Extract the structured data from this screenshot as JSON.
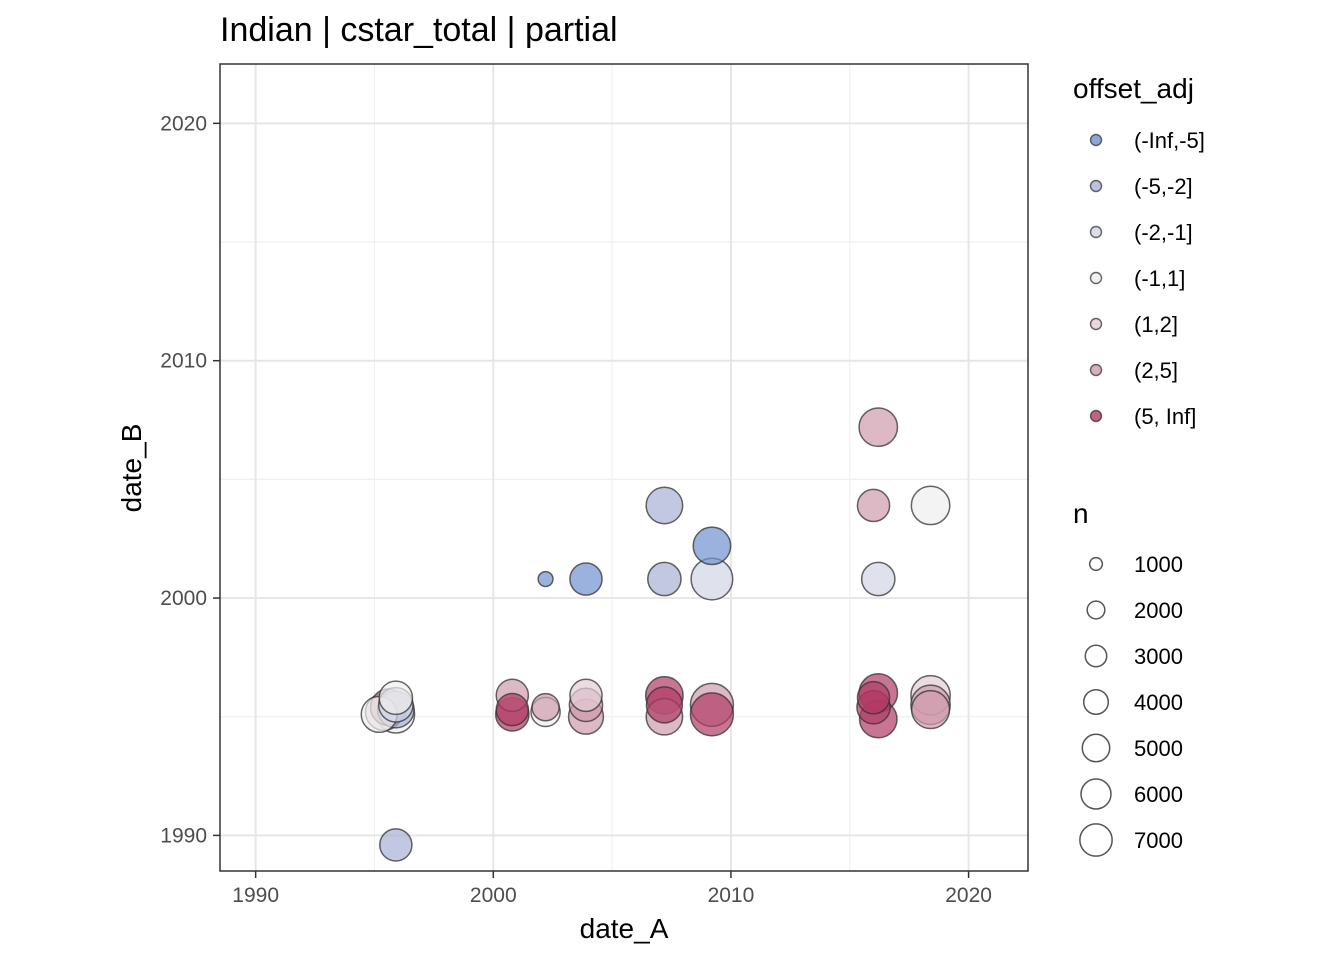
{
  "chart_data": {
    "type": "scatter",
    "title": "Indian | cstar_total | partial",
    "xlabel": "date_A",
    "ylabel": "date_B",
    "xlim": [
      1988.5,
      2022.5
    ],
    "ylim": [
      1988.5,
      2022.5
    ],
    "x_ticks": [
      "1990",
      "2000",
      "2010",
      "2020"
    ],
    "y_ticks": [
      "1990",
      "2000",
      "2010",
      "2020"
    ],
    "grid": true,
    "legend_placement": "right",
    "color_legend": {
      "title": "offset_adj",
      "entries": [
        {
          "label": "(-Inf,-5]",
          "color": "#7190d0"
        },
        {
          "label": "(-5,-2]",
          "color": "#aab1d6"
        },
        {
          "label": "(-2,-1]",
          "color": "#d2d5e6"
        },
        {
          "label": "(-1,1]",
          "color": "#eeeeee"
        },
        {
          "label": "(1,2]",
          "color": "#e3cdd5"
        },
        {
          "label": "(2,5]",
          "color": "#cf9aac"
        },
        {
          "label": "(5, Inf]",
          "color": "#b13b65"
        }
      ]
    },
    "size_legend": {
      "title": "n",
      "entries": [
        {
          "label": "1000",
          "value": 1000
        },
        {
          "label": "2000",
          "value": 2000
        },
        {
          "label": "3000",
          "value": 3000
        },
        {
          "label": "4000",
          "value": 4000
        },
        {
          "label": "5000",
          "value": 5000
        },
        {
          "label": "6000",
          "value": 6000
        },
        {
          "label": "7000",
          "value": 7000
        }
      ]
    },
    "points": [
      {
        "x": 1995.2,
        "y": 1995.1,
        "group": "(-1,1]",
        "n": 3500
      },
      {
        "x": 1995.4,
        "y": 1995.2,
        "group": "(1,2]",
        "n": 3700
      },
      {
        "x": 1995.6,
        "y": 1995.4,
        "group": "(2,5]",
        "n": 3600
      },
      {
        "x": 1995.9,
        "y": 1995.8,
        "group": "(-1,1]",
        "n": 3000
      },
      {
        "x": 1995.9,
        "y": 1995.5,
        "group": "(-2,-1]",
        "n": 3200
      },
      {
        "x": 1995.9,
        "y": 1995.3,
        "group": "(-5,-2]",
        "n": 3600
      },
      {
        "x": 1995.9,
        "y": 1995.1,
        "group": "(-1,1]",
        "n": 3800
      },
      {
        "x": 1995.9,
        "y": 1989.6,
        "group": "(-5,-2]",
        "n": 2800
      },
      {
        "x": 2000.8,
        "y": 1995.9,
        "group": "(2,5]",
        "n": 2800
      },
      {
        "x": 2000.8,
        "y": 1995.3,
        "group": "(5, Inf]",
        "n": 2800
      },
      {
        "x": 2000.8,
        "y": 1995.1,
        "group": "(5, Inf]",
        "n": 3000
      },
      {
        "x": 2002.2,
        "y": 1995.4,
        "group": "(2,5]",
        "n": 2000
      },
      {
        "x": 2002.2,
        "y": 1995.2,
        "group": "(-1,1]",
        "n": 2300
      },
      {
        "x": 2002.2,
        "y": 2000.8,
        "group": "(-Inf,-5]",
        "n": 600
      },
      {
        "x": 2003.9,
        "y": 1995.9,
        "group": "(1,2]",
        "n": 2800
      },
      {
        "x": 2003.9,
        "y": 1995.5,
        "group": "(2,5]",
        "n": 3000
      },
      {
        "x": 2003.9,
        "y": 1995.0,
        "group": "(2,5]",
        "n": 3300
      },
      {
        "x": 2003.9,
        "y": 2000.8,
        "group": "(-Inf,-5]",
        "n": 2800
      },
      {
        "x": 2007.2,
        "y": 1995.9,
        "group": "(5, Inf]",
        "n": 3800
      },
      {
        "x": 2007.2,
        "y": 1995.5,
        "group": "(5, Inf]",
        "n": 3500
      },
      {
        "x": 2007.2,
        "y": 1995.0,
        "group": "(2,5]",
        "n": 3600
      },
      {
        "x": 2007.2,
        "y": 2000.8,
        "group": "(-5,-2]",
        "n": 3000
      },
      {
        "x": 2007.2,
        "y": 2003.9,
        "group": "(-5,-2]",
        "n": 3600
      },
      {
        "x": 2009.2,
        "y": 1995.5,
        "group": "(2,5]",
        "n": 5000
      },
      {
        "x": 2009.2,
        "y": 1995.1,
        "group": "(5, Inf]",
        "n": 5000
      },
      {
        "x": 2009.2,
        "y": 2000.8,
        "group": "(-2,-1]",
        "n": 4700
      },
      {
        "x": 2009.2,
        "y": 2002.2,
        "group": "(-Inf,-5]",
        "n": 3800
      },
      {
        "x": 2016.0,
        "y": 1995.8,
        "group": "(5, Inf]",
        "n": 2800
      },
      {
        "x": 2016.0,
        "y": 1995.4,
        "group": "(5, Inf]",
        "n": 3000
      },
      {
        "x": 2016.0,
        "y": 2003.9,
        "group": "(2,5]",
        "n": 2800
      },
      {
        "x": 2016.2,
        "y": 1996.0,
        "group": "(5, Inf]",
        "n": 4000
      },
      {
        "x": 2016.2,
        "y": 1994.9,
        "group": "(5, Inf]",
        "n": 3800
      },
      {
        "x": 2016.2,
        "y": 2000.8,
        "group": "(-2,-1]",
        "n": 3000
      },
      {
        "x": 2016.2,
        "y": 2007.2,
        "group": "(2,5]",
        "n": 4000
      },
      {
        "x": 2018.4,
        "y": 1995.9,
        "group": "(1,2]",
        "n": 4200
      },
      {
        "x": 2018.4,
        "y": 1995.5,
        "group": "(2,5]",
        "n": 4200
      },
      {
        "x": 2018.4,
        "y": 1995.3,
        "group": "(2,5]",
        "n": 3900
      },
      {
        "x": 2018.4,
        "y": 2003.9,
        "group": "(-1,1]",
        "n": 4000
      }
    ]
  }
}
